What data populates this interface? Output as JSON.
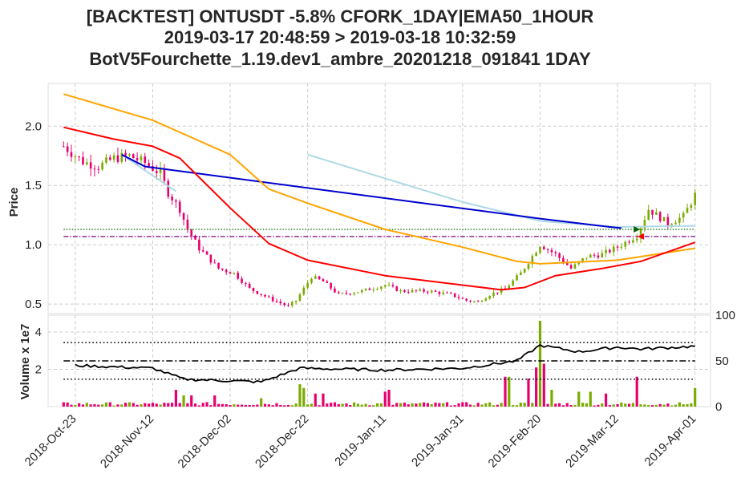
{
  "title": {
    "line1": "[BACKTEST] ONTUSDT -5.8% CFORK_1DAY|EMA50_1HOUR",
    "line2": "2019-03-17 20:48:59 > 2019-03-18 10:32:59",
    "line3": "BotV5Fourchette_1.19.dev1_ambre_20201218_091841 1DAY"
  },
  "colors": {
    "up": "#7aab00",
    "down": "#e6006e",
    "ema_slow": "#ffa500",
    "ema_fast": "#ff0000",
    "trend_blue": "#0000cd",
    "trend_light": "#add8e6",
    "level_green": "#006400",
    "level_purple": "#800080",
    "grid": "#cccccc"
  },
  "chart_data": [
    {
      "type": "candlestick",
      "ylabel": "Price",
      "ylim": [
        0.42,
        2.36
      ],
      "yticks": [
        "0.5",
        "1.0",
        "1.5",
        "2.0"
      ],
      "ytick_values": [
        0.5,
        1.0,
        1.5,
        2.0
      ],
      "x_tick_labels": [
        "2018-Oct-23",
        "2018-Nov-12",
        "2018-Dec-02",
        "2018-Dec-22",
        "2019-Jan-11",
        "2019-Jan-31",
        "2019-Feb-20",
        "2019-Mar-12",
        "2019-Apr-01"
      ],
      "x_range": [
        "2018-Oct-16",
        "2019-Apr-05"
      ],
      "close_anchors": [
        [
          "2018-Oct-20",
          1.83
        ],
        [
          "2018-Oct-25",
          1.7
        ],
        [
          "2018-Oct-29",
          1.66
        ],
        [
          "2018-Nov-02",
          1.73
        ],
        [
          "2018-Nov-06",
          1.75
        ],
        [
          "2018-Nov-10",
          1.69
        ],
        [
          "2018-Nov-14",
          1.6
        ],
        [
          "2018-Nov-16",
          1.44
        ],
        [
          "2018-Nov-19",
          1.3
        ],
        [
          "2018-Nov-21",
          1.13
        ],
        [
          "2018-Nov-24",
          0.97
        ],
        [
          "2018-Nov-29",
          0.8
        ],
        [
          "2018-Dec-03",
          0.76
        ],
        [
          "2018-Dec-07",
          0.63
        ],
        [
          "2018-Dec-12",
          0.55
        ],
        [
          "2018-Dec-17",
          0.48
        ],
        [
          "2018-Dec-19",
          0.53
        ],
        [
          "2018-Dec-23",
          0.73
        ],
        [
          "2018-Dec-26",
          0.69
        ],
        [
          "2018-Dec-30",
          0.58
        ],
        [
          "2019-Jan-05",
          0.61
        ],
        [
          "2019-Jan-11",
          0.66
        ],
        [
          "2019-Jan-15",
          0.61
        ],
        [
          "2019-Jan-22",
          0.61
        ],
        [
          "2019-Jan-28",
          0.58
        ],
        [
          "2019-Feb-01",
          0.53
        ],
        [
          "2019-Feb-04",
          0.52
        ],
        [
          "2019-Feb-07",
          0.58
        ],
        [
          "2019-Feb-11",
          0.63
        ],
        [
          "2019-Feb-15",
          0.76
        ],
        [
          "2019-Feb-20",
          1.0
        ],
        [
          "2019-Feb-24",
          0.92
        ],
        [
          "2019-Feb-28",
          0.8
        ],
        [
          "2019-Mar-04",
          0.9
        ],
        [
          "2019-Mar-08",
          0.92
        ],
        [
          "2019-Mar-12",
          0.98
        ],
        [
          "2019-Mar-14",
          1.02
        ],
        [
          "2019-Mar-17",
          1.08
        ],
        [
          "2019-Mar-20",
          1.3
        ],
        [
          "2019-Mar-25",
          1.18
        ],
        [
          "2019-Mar-29",
          1.24
        ],
        [
          "2019-Apr-01",
          1.42
        ]
      ],
      "ema_slow": {
        "color": "#ffa500",
        "points": [
          [
            "2018-Oct-20",
            2.27
          ],
          [
            "2018-Nov-12",
            2.05
          ],
          [
            "2018-Dec-02",
            1.76
          ],
          [
            "2018-Dec-12",
            1.47
          ],
          [
            "2018-Dec-22",
            1.35
          ],
          [
            "2019-Jan-11",
            1.13
          ],
          [
            "2019-Jan-31",
            0.98
          ],
          [
            "2019-Feb-14",
            0.86
          ],
          [
            "2019-Feb-20",
            0.84
          ],
          [
            "2019-Mar-12",
            0.87
          ],
          [
            "2019-Mar-22",
            0.92
          ],
          [
            "2019-Apr-01",
            0.97
          ]
        ]
      },
      "ema_fast": {
        "color": "#ff0000",
        "points": [
          [
            "2018-Oct-20",
            1.99
          ],
          [
            "2018-Nov-02",
            1.89
          ],
          [
            "2018-Nov-12",
            1.83
          ],
          [
            "2018-Nov-19",
            1.73
          ],
          [
            "2018-Dec-02",
            1.31
          ],
          [
            "2018-Dec-12",
            1.01
          ],
          [
            "2018-Dec-22",
            0.87
          ],
          [
            "2019-Jan-11",
            0.74
          ],
          [
            "2019-Jan-31",
            0.66
          ],
          [
            "2019-Feb-10",
            0.62
          ],
          [
            "2019-Feb-16",
            0.64
          ],
          [
            "2019-Feb-24",
            0.74
          ],
          [
            "2019-Mar-08",
            0.8
          ],
          [
            "2019-Mar-18",
            0.86
          ],
          [
            "2019-Apr-01",
            1.02
          ]
        ]
      },
      "trend_blue": {
        "color": "#0000cd",
        "points": [
          [
            "2018-Nov-04",
            1.76
          ],
          [
            "2018-Nov-10",
            1.66
          ],
          [
            "2019-Feb-20",
            1.22
          ],
          [
            "2019-Mar-10",
            1.15
          ],
          [
            "2019-Mar-13",
            1.14
          ]
        ]
      },
      "trend_light_a": {
        "color": "#add8e6",
        "points": [
          [
            "2018-Nov-04",
            1.76
          ],
          [
            "2018-Nov-18",
            1.45
          ]
        ]
      },
      "trend_light_b": {
        "color": "#add8e6",
        "points": [
          [
            "2018-Dec-22",
            1.76
          ],
          [
            "2019-Jan-11",
            1.56
          ],
          [
            "2019-Jan-31",
            1.36
          ],
          [
            "2019-Feb-20",
            1.2
          ],
          [
            "2019-Mar-12",
            1.15
          ],
          [
            "2019-Apr-01",
            1.16
          ]
        ]
      },
      "level_lines": [
        {
          "value": 1.13,
          "color": "#006400",
          "style": "dotted"
        },
        {
          "value": 1.07,
          "color": "#800080",
          "style": "dashdot"
        }
      ],
      "trade_markers": [
        {
          "date": "2019-Mar-17",
          "value": 1.13,
          "color": "#006400",
          "shape": "arrow-right"
        },
        {
          "date": "2019-Mar-18",
          "value": 1.07,
          "color": "#ff0000",
          "shape": "arrow-left"
        }
      ]
    },
    {
      "type": "bar",
      "ylabel": "Volume x 1e7",
      "ylim": [
        0,
        4.9
      ],
      "yticks": [
        "2",
        "4"
      ],
      "ytick_values": [
        2,
        4
      ],
      "right_yticks": [
        "0",
        "50",
        "100"
      ],
      "right_ylim": [
        0,
        100
      ],
      "volume_levels": {
        "base": 0.15,
        "spikes": [
          [
            "2018-Nov-18",
            0.9,
            "down"
          ],
          [
            "2018-Nov-20",
            0.6,
            "up"
          ],
          [
            "2018-Nov-22",
            0.6,
            "down"
          ],
          [
            "2018-Nov-28",
            0.6,
            "down"
          ],
          [
            "2018-Dec-10",
            0.45,
            "up"
          ],
          [
            "2018-Dec-20",
            1.2,
            "up"
          ],
          [
            "2018-Dec-21",
            1.0,
            "up"
          ],
          [
            "2018-Dec-24",
            0.7,
            "down"
          ],
          [
            "2018-Dec-26",
            0.7,
            "down"
          ],
          [
            "2019-Jan-11",
            0.8,
            "down"
          ],
          [
            "2019-Jan-12",
            0.9,
            "down"
          ],
          [
            "2019-Feb-11",
            1.6,
            "down"
          ],
          [
            "2019-Feb-12",
            1.6,
            "up"
          ],
          [
            "2019-Feb-17",
            1.5,
            "down"
          ],
          [
            "2019-Feb-19",
            2.1,
            "down"
          ],
          [
            "2019-Feb-20",
            4.6,
            "up"
          ],
          [
            "2019-Feb-21",
            2.3,
            "down"
          ],
          [
            "2019-Feb-23",
            0.9,
            "up"
          ],
          [
            "2019-Mar-02",
            0.8,
            "up"
          ],
          [
            "2019-Mar-05",
            0.8,
            "up"
          ],
          [
            "2019-Mar-09",
            0.7,
            "down"
          ],
          [
            "2019-Mar-17",
            1.6,
            "down"
          ],
          [
            "2019-Apr-01",
            1.0,
            "up"
          ]
        ]
      },
      "rsi": {
        "color": "#000000",
        "points": [
          [
            "2018-Oct-23",
            45
          ],
          [
            "2018-Nov-12",
            42
          ],
          [
            "2018-Nov-20",
            30
          ],
          [
            "2018-Dec-10",
            27
          ],
          [
            "2018-Dec-20",
            42
          ],
          [
            "2019-Jan-11",
            40
          ],
          [
            "2019-Jan-31",
            42
          ],
          [
            "2019-Feb-14",
            50
          ],
          [
            "2019-Feb-20",
            67
          ],
          [
            "2019-Mar-02",
            60
          ],
          [
            "2019-Mar-12",
            65
          ],
          [
            "2019-Mar-18",
            63
          ],
          [
            "2019-Apr-01",
            66
          ]
        ]
      },
      "rsi_levels": [
        {
          "value": 70,
          "style": "dotted"
        },
        {
          "value": 50,
          "style": "dashdot"
        },
        {
          "value": 30,
          "style": "dotted"
        }
      ]
    }
  ]
}
